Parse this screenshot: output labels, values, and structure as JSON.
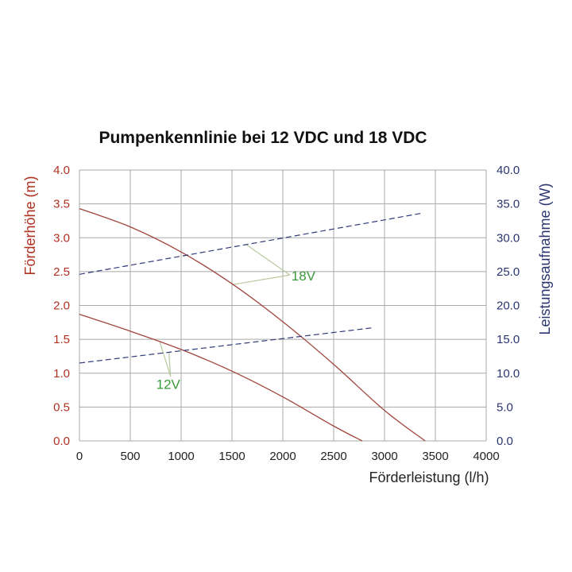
{
  "chart_data": {
    "type": "line",
    "title": "Pumpenkennlinie bei 12 VDC und 18 VDC",
    "xlabel": "Förderleistung (l/h)",
    "ylabel_left": "Förderhöhe (m)",
    "ylabel_right": "Leistungsaufnahme (W)",
    "xlim": [
      0,
      4000
    ],
    "ylim_left": [
      0,
      4.0
    ],
    "ylim_right": [
      0,
      40.0
    ],
    "x_ticks": [
      "0",
      "500",
      "1000",
      "1500",
      "2000",
      "2500",
      "3000",
      "3500",
      "4000"
    ],
    "y_left_ticks": [
      "0.0",
      "0.5",
      "1.0",
      "1.5",
      "2.0",
      "2.5",
      "3.0",
      "3.5",
      "4.0"
    ],
    "y_right_ticks": [
      "0.0",
      "5.0",
      "10.0",
      "15.0",
      "20.0",
      "25.0",
      "30.0",
      "35.0",
      "40.0"
    ],
    "grid": true,
    "annotations": [
      {
        "text": "18V",
        "x": 2100,
        "y": 2.45
      },
      {
        "text": "12V",
        "x": 880,
        "y": 0.86
      }
    ],
    "series": [
      {
        "name": "18V",
        "axis": "left",
        "style": "solid",
        "x": [
          0,
          500,
          1000,
          1500,
          2000,
          2500,
          3000,
          3400
        ],
        "y": [
          3.43,
          3.16,
          2.79,
          2.32,
          1.76,
          1.13,
          0.45,
          0.0
        ]
      },
      {
        "name": "12V",
        "axis": "left",
        "style": "solid",
        "x": [
          0,
          500,
          1000,
          1500,
          2000,
          2500,
          2780
        ],
        "y": [
          1.87,
          1.62,
          1.35,
          1.03,
          0.65,
          0.22,
          0.0
        ]
      },
      {
        "name": "18V",
        "axis": "right",
        "style": "dashed",
        "x": [
          0,
          3360
        ],
        "y": [
          24.6,
          33.6
        ]
      },
      {
        "name": "12V",
        "axis": "right",
        "style": "dashed",
        "x": [
          0,
          2880
        ],
        "y": [
          11.5,
          16.7
        ]
      }
    ],
    "colors": {
      "head": "#a0453c",
      "power": "#2f3a78",
      "left_axis_text": "#b03020",
      "right_axis_text": "#2a3570",
      "annotation": "#3a9a3a",
      "annotation_line": "#b8c9a0",
      "grid": "#a8a8a8",
      "axis_text": "#222222"
    }
  }
}
